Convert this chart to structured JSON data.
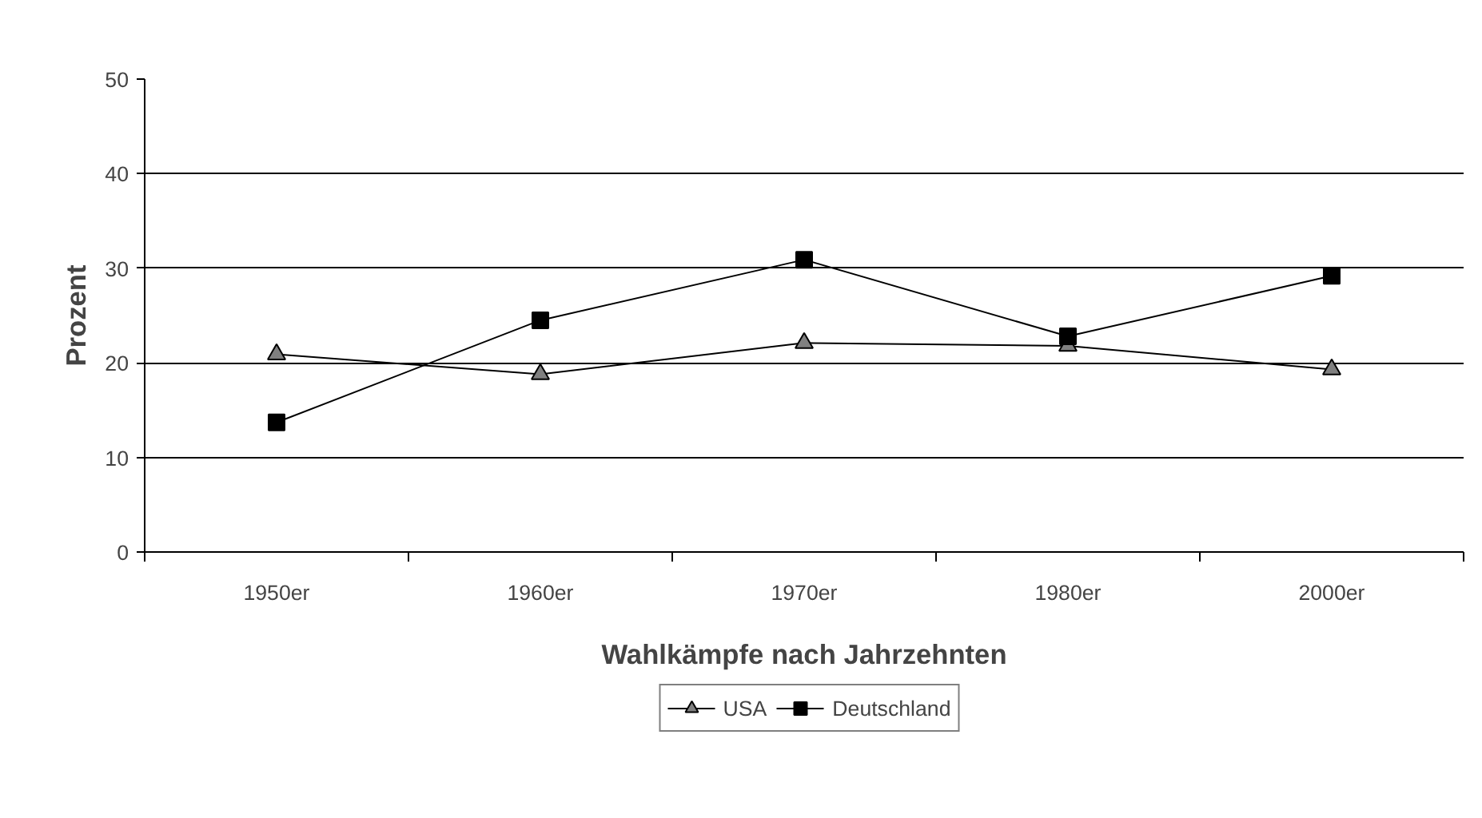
{
  "chart_data": {
    "type": "line",
    "xlabel": "Wahlkämpfe nach Jahrzehnten",
    "ylabel": "Prozent",
    "categories": [
      "1950er",
      "1960er",
      "1970er",
      "1980er",
      "2000er"
    ],
    "series": [
      {
        "name": "USA",
        "color": "#808080",
        "marker": "triangle",
        "values": [
          20.9,
          18.8,
          22.1,
          21.8,
          19.3
        ]
      },
      {
        "name": "Deutschland",
        "color": "#000000",
        "marker": "square",
        "values": [
          13.7,
          24.5,
          30.9,
          22.8,
          29.2
        ]
      }
    ],
    "ylim": [
      0,
      50
    ],
    "yticks": [
      0,
      10,
      20,
      30,
      40,
      50
    ],
    "grid": "y",
    "legend": "bottom",
    "line_style": "solid"
  }
}
